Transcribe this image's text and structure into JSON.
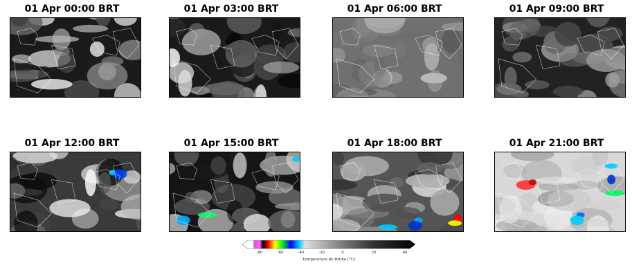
{
  "panels": [
    {
      "title": "01 Apr 00:00 BRT",
      "scene": "dark-bright"
    },
    {
      "title": "01 Apr 03:00 BRT",
      "scene": "dark-bright"
    },
    {
      "title": "01 Apr 06:00 BRT",
      "scene": "grey"
    },
    {
      "title": "01 Apr 09:00 BRT",
      "scene": "dark-grey"
    },
    {
      "title": "01 Apr 12:00 BRT",
      "scene": "grey-cyan"
    },
    {
      "title": "01 Apr 15:00 BRT",
      "scene": "dark-color"
    },
    {
      "title": "01 Apr 18:00 BRT",
      "scene": "stripes-color"
    },
    {
      "title": "01 Apr 21:00 BRT",
      "scene": "bright-color"
    }
  ],
  "colorbar": {
    "ticks": [
      "-80",
      "-60",
      "-40",
      "-20",
      "0",
      "20",
      "40"
    ],
    "label": "Temperatura de Brilho (°C)",
    "colors": [
      "#ffffff",
      "#cc44cc",
      "#ff0000",
      "#ffff00",
      "#00ff00",
      "#0000ff",
      "#00ccff",
      "#ffffff",
      "#000000"
    ]
  }
}
